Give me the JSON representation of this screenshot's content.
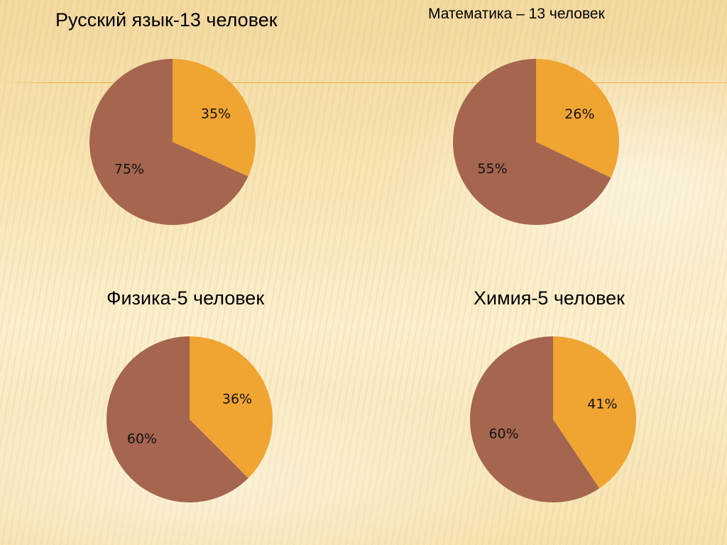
{
  "chart_data": [
    {
      "type": "pie",
      "title": "Русский язык-13 человек",
      "categories": [
        "",
        ""
      ],
      "values": [
        35,
        75
      ],
      "labels": [
        "35%",
        "75%"
      ],
      "colors": [
        "#f0a431",
        "#a5654f"
      ]
    },
    {
      "type": "pie",
      "title": "Математика – 13 человек",
      "categories": [
        "",
        ""
      ],
      "values": [
        26,
        55
      ],
      "labels": [
        "26%",
        "55%"
      ],
      "colors": [
        "#f0a431",
        "#a5654f"
      ]
    },
    {
      "type": "pie",
      "title": "Физика-5 человек",
      "categories": [
        "",
        ""
      ],
      "values": [
        36,
        60
      ],
      "labels": [
        "36%",
        "60%"
      ],
      "colors": [
        "#f0a431",
        "#a5654f"
      ]
    },
    {
      "type": "pie",
      "title": "Химия-5 человек",
      "categories": [
        "",
        ""
      ],
      "values": [
        41,
        60
      ],
      "labels": [
        "41%",
        "60%"
      ],
      "colors": [
        "#f0a431",
        "#a5654f"
      ]
    }
  ]
}
